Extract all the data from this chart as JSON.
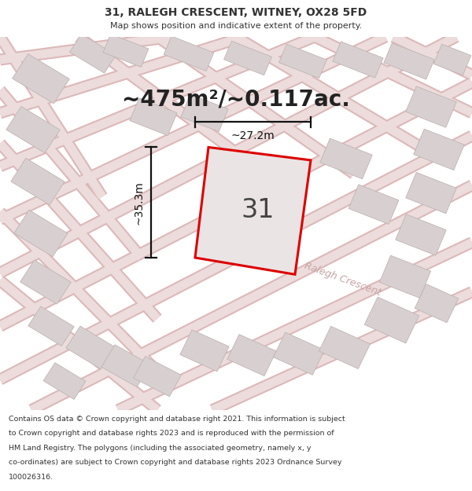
{
  "title": "31, RALEGH CRESCENT, WITNEY, OX28 5FD",
  "subtitle": "Map shows position and indicative extent of the property.",
  "area_text": "~475m²/~0.117ac.",
  "plot_number": "31",
  "dim_width": "~27.2m",
  "dim_height": "~35.3m",
  "street_label": "Ralegh Crescent",
  "footer_lines": [
    "Contains OS data © Crown copyright and database right 2021. This information is subject",
    "to Crown copyright and database rights 2023 and is reproduced with the permission of",
    "HM Land Registry. The polygons (including the associated geometry, namely x, y",
    "co-ordinates) are subject to Crown copyright and database rights 2023 Ordnance Survey",
    "100026316."
  ],
  "map_bg": "#f0eaea",
  "road_color": "#e8c0c0",
  "building_color": "#d8d0d0",
  "building_edge": "#c0b4b4",
  "plot_fill": "#eae4e4",
  "plot_edge": "#dd0000",
  "title_color": "#333333",
  "dim_color": "#111111",
  "street_color": "#c8a4a4",
  "footer_color": "#333333",
  "title_fontsize": 10,
  "subtitle_fontsize": 8,
  "area_fontsize": 20,
  "plot_num_fontsize": 24,
  "dim_fontsize": 10,
  "street_fontsize": 9,
  "footer_fontsize": 6.8
}
